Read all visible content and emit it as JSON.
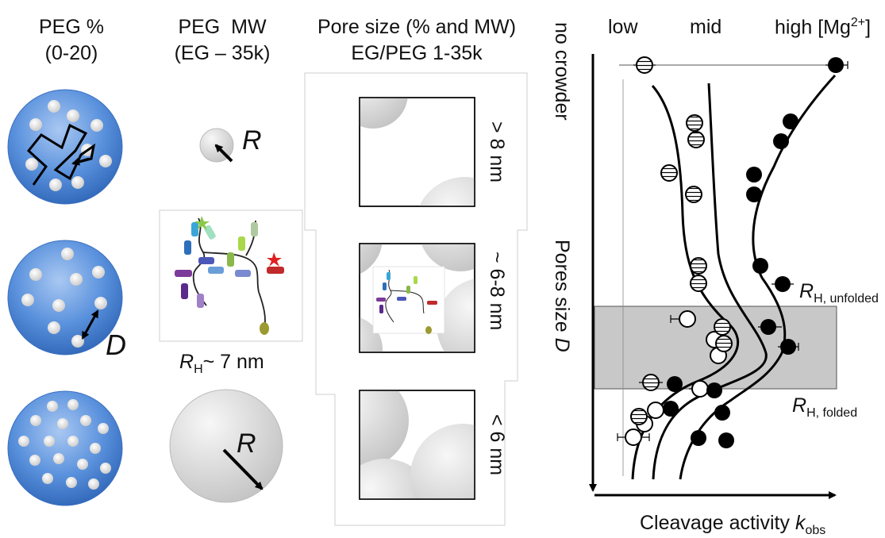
{
  "col1": {
    "title": "PEG %",
    "range": "(0-20)",
    "d_label": "D"
  },
  "col2": {
    "title": "PEG  MW",
    "range": "(EG – 35k)",
    "r_label": "R",
    "rh_sym": "R",
    "rh_sub": "H",
    "rh_value": "~ 7 nm"
  },
  "col3": {
    "title": "Pore size (% and MW)",
    "subtitle": "EG/PEG 1-35k",
    "pore_labels": [
      "> 8 nm",
      "~ 6-8 nm",
      "< 6 nm"
    ]
  },
  "plot": {
    "col_labels": [
      "low",
      "mid",
      "high [Mg"
    ],
    "mg_sup": "2+",
    "mg_close": "]",
    "y_top_label": "no crowder",
    "y_axis_label": "Pores size ",
    "y_axis_sym": "D",
    "x_axis_label": "Cleavage activity ",
    "x_axis_sym": "k",
    "x_axis_sub": "obs",
    "rh_unfolded_sym": "R",
    "rh_unfolded_sub": "H, unfolded",
    "rh_folded_sym": "R",
    "rh_folded_sub": "H, folded"
  },
  "colors": {
    "sphere_blue": "#4a86d8",
    "crowder_gray": "#d8d8d8",
    "band_gray": "#c8c8c8",
    "black": "#000000"
  }
}
